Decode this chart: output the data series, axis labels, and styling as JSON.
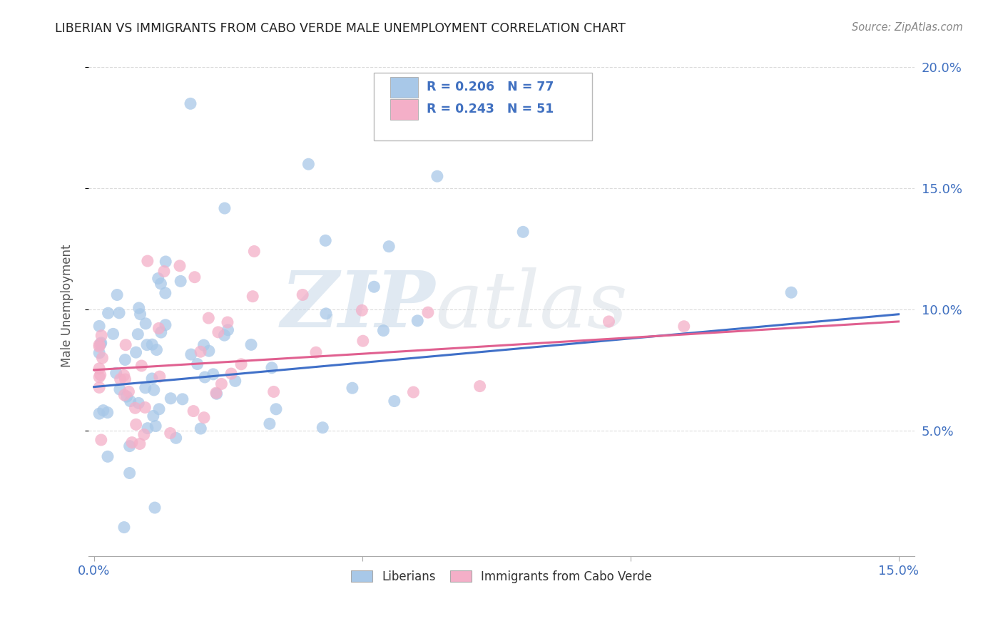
{
  "title": "LIBERIAN VS IMMIGRANTS FROM CABO VERDE MALE UNEMPLOYMENT CORRELATION CHART",
  "source": "Source: ZipAtlas.com",
  "ylabel": "Male Unemployment",
  "xlim": [
    0.0,
    0.15
  ],
  "ylim": [
    0.0,
    0.205
  ],
  "xticks": [
    0.0,
    0.05,
    0.1,
    0.15
  ],
  "xtick_labels": [
    "0.0%",
    "",
    "",
    "15.0%"
  ],
  "yticks": [
    0.05,
    0.1,
    0.15,
    0.2
  ],
  "ytick_labels_right": [
    "5.0%",
    "10.0%",
    "15.0%",
    "20.0%"
  ],
  "blue_R": 0.206,
  "blue_N": 77,
  "pink_R": 0.243,
  "pink_N": 51,
  "blue_color": "#a8c8e8",
  "pink_color": "#f4afc8",
  "blue_line_color": "#4070c8",
  "pink_line_color": "#e06090",
  "watermark": "ZIPatlas",
  "legend_label_blue": "Liberians",
  "legend_label_pink": "Immigrants from Cabo Verde",
  "blue_line_start_y": 0.068,
  "blue_line_end_y": 0.098,
  "pink_line_start_y": 0.075,
  "pink_line_end_y": 0.095
}
